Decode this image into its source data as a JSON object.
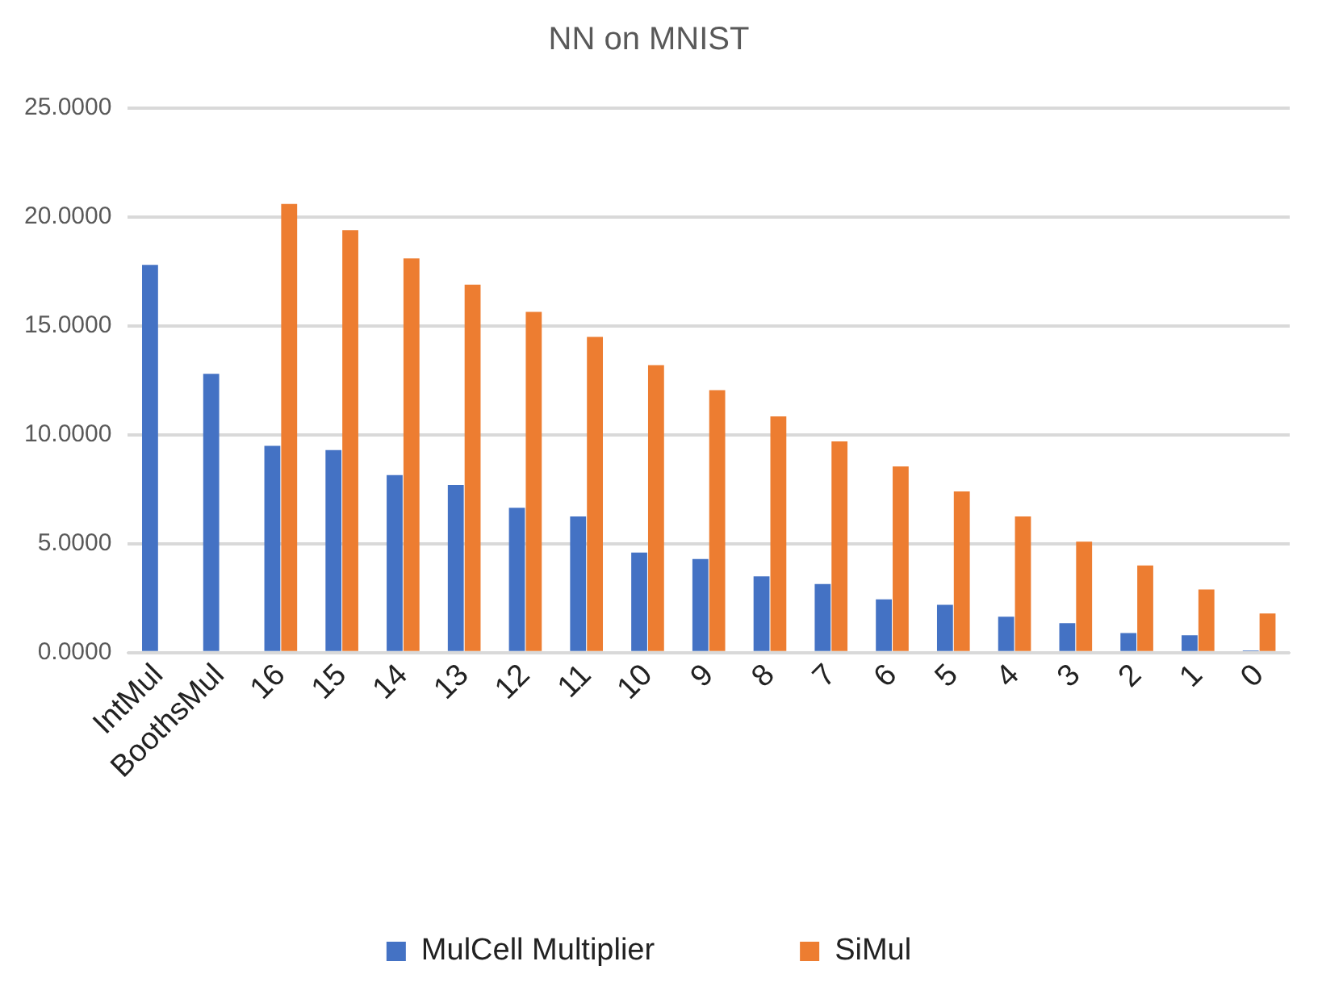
{
  "chart_data": {
    "type": "bar",
    "title": "NN on MNIST",
    "categories": [
      "IntMul",
      "BoothsMul",
      "16",
      "15",
      "14",
      "13",
      "12",
      "11",
      "10",
      "9",
      "8",
      "7",
      "6",
      "5",
      "4",
      "3",
      "2",
      "1",
      "0"
    ],
    "series": [
      {
        "name": "MulCell Multiplier",
        "color": "#4472c4",
        "values": [
          17.8,
          12.8,
          9.5,
          9.3,
          8.15,
          7.7,
          6.65,
          6.25,
          4.6,
          4.3,
          3.5,
          3.15,
          2.45,
          2.2,
          1.65,
          1.35,
          0.9,
          0.8,
          0.1
        ]
      },
      {
        "name": "SiMul",
        "color": "#ed7d31",
        "values": [
          null,
          null,
          20.6,
          19.4,
          18.1,
          16.9,
          15.65,
          14.5,
          13.2,
          12.05,
          10.85,
          9.7,
          8.55,
          7.4,
          6.25,
          5.1,
          4.0,
          2.9,
          1.8
        ]
      }
    ],
    "ylim": [
      0,
      25
    ],
    "yticks": [
      {
        "value": 0,
        "label": "0.0000"
      },
      {
        "value": 5,
        "label": "5.0000"
      },
      {
        "value": 10,
        "label": "10.0000"
      },
      {
        "value": 15,
        "label": "15.0000"
      },
      {
        "value": 20,
        "label": "20.0000"
      },
      {
        "value": 25,
        "label": "25.0000"
      }
    ],
    "grid": "y",
    "legend": "bottom"
  }
}
